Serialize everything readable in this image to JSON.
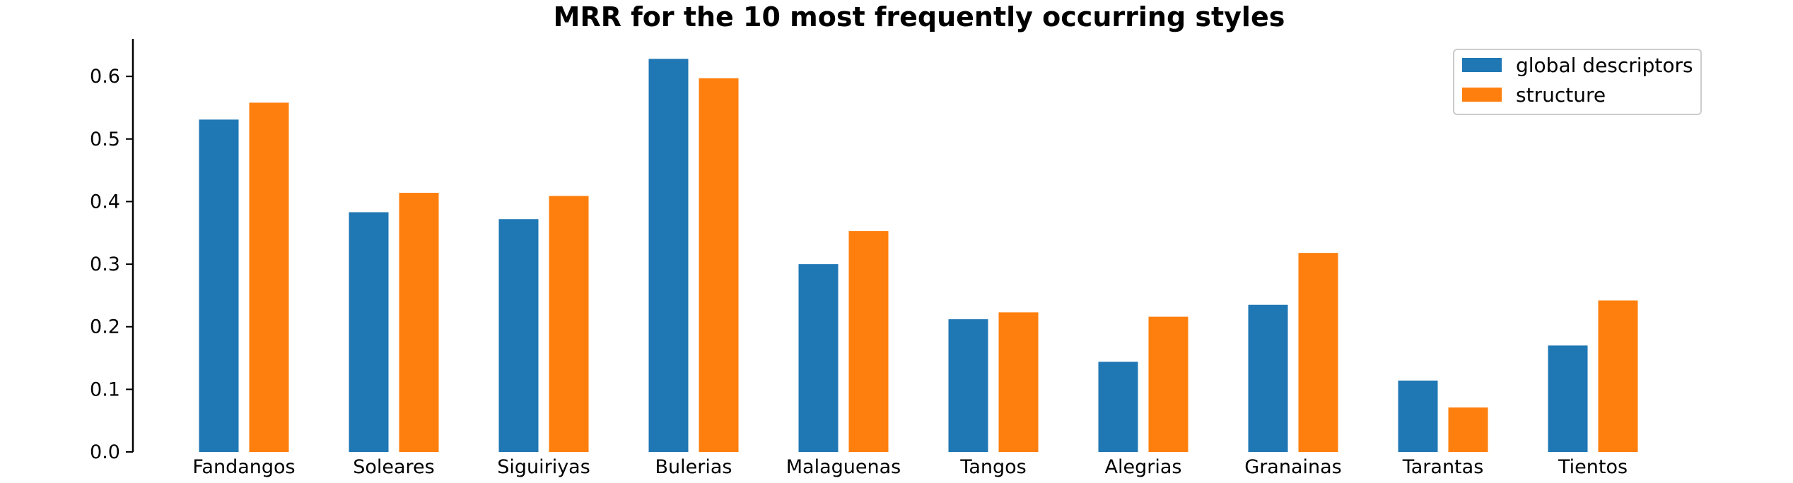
{
  "chart_data": {
    "type": "bar",
    "title": "MRR for the 10 most frequently occurring styles",
    "xlabel": "",
    "ylabel": "",
    "categories": [
      "Fandangos",
      "Soleares",
      "Siguiriyas",
      "Bulerias",
      "Malaguenas",
      "Tangos",
      "Alegrias",
      "Granainas",
      "Tarantas",
      "Tientos"
    ],
    "series": [
      {
        "name": "global descriptors",
        "color": "#1f77b4",
        "values": [
          0.531,
          0.383,
          0.372,
          0.628,
          0.3,
          0.212,
          0.144,
          0.235,
          0.114,
          0.17
        ]
      },
      {
        "name": "structure",
        "color": "#ff7f0e",
        "values": [
          0.558,
          0.414,
          0.409,
          0.597,
          0.353,
          0.223,
          0.216,
          0.318,
          0.071,
          0.242
        ]
      }
    ],
    "ylim": [
      0,
      0.66
    ],
    "yticks": [
      "0.0",
      "0.1",
      "0.2",
      "0.3",
      "0.4",
      "0.5",
      "0.6"
    ],
    "grid": false,
    "legend_position": "top-right"
  }
}
